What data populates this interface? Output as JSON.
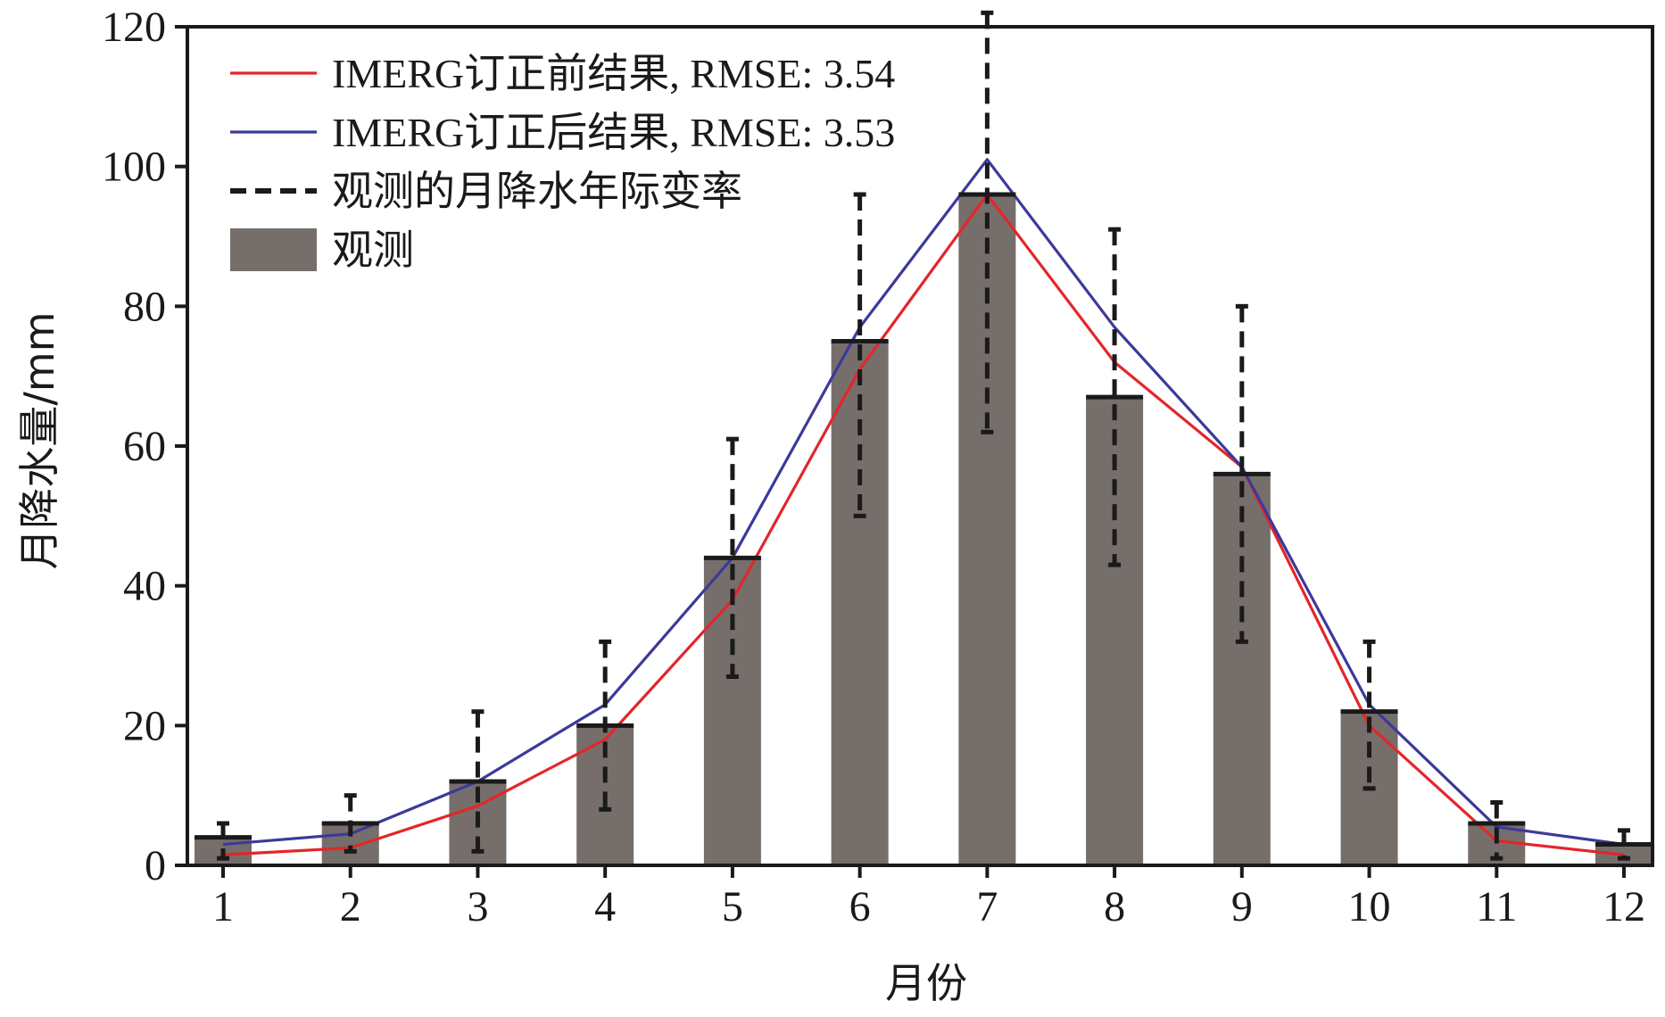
{
  "chart_data": {
    "type": "bar",
    "xlabel": "月份",
    "ylabel": "月降水量/mm",
    "ylim": [
      0,
      120
    ],
    "yticks": [
      0,
      20,
      40,
      60,
      80,
      100,
      120
    ],
    "categories": [
      "1",
      "2",
      "3",
      "4",
      "5",
      "6",
      "7",
      "8",
      "9",
      "10",
      "11",
      "12"
    ],
    "legend_position": "top-left",
    "series": [
      {
        "name": "观测",
        "type": "bar",
        "color": "#766e6b",
        "values": [
          4,
          6,
          12,
          20,
          44,
          75,
          96,
          67,
          56,
          22,
          6,
          3
        ]
      },
      {
        "name": "观测的月降水年际变率",
        "type": "errorbar",
        "color": "#1a1a1a",
        "lower": [
          1,
          2,
          2,
          8,
          27,
          50,
          62,
          43,
          32,
          11,
          1,
          1
        ],
        "upper": [
          6,
          10,
          22,
          32,
          61,
          96,
          122,
          91,
          80,
          32,
          9,
          5
        ]
      },
      {
        "name": "IMERG订正前结果, RMSE: 3.54",
        "type": "line",
        "color": "#e3262a",
        "values": [
          1.5,
          2.5,
          8.5,
          18,
          38,
          71,
          96,
          72,
          57,
          20,
          3.5,
          1.5
        ]
      },
      {
        "name": "IMERG订正后结果, RMSE: 3.53",
        "type": "line",
        "color": "#3b3a9a",
        "values": [
          3,
          4.5,
          12,
          23,
          44,
          77,
          101,
          77,
          57,
          23,
          5.5,
          3
        ]
      }
    ]
  },
  "legend": [
    {
      "label": "IMERG订正前结果, RMSE: 3.54",
      "kind": "line",
      "color": "#e3262a"
    },
    {
      "label": "IMERG订正后结果, RMSE: 3.53",
      "kind": "line",
      "color": "#3b3a9a"
    },
    {
      "label": "观测的月降水年际变率",
      "kind": "dash",
      "color": "#1a1a1a"
    },
    {
      "label": "观测",
      "kind": "box",
      "color": "#766e6b"
    }
  ]
}
